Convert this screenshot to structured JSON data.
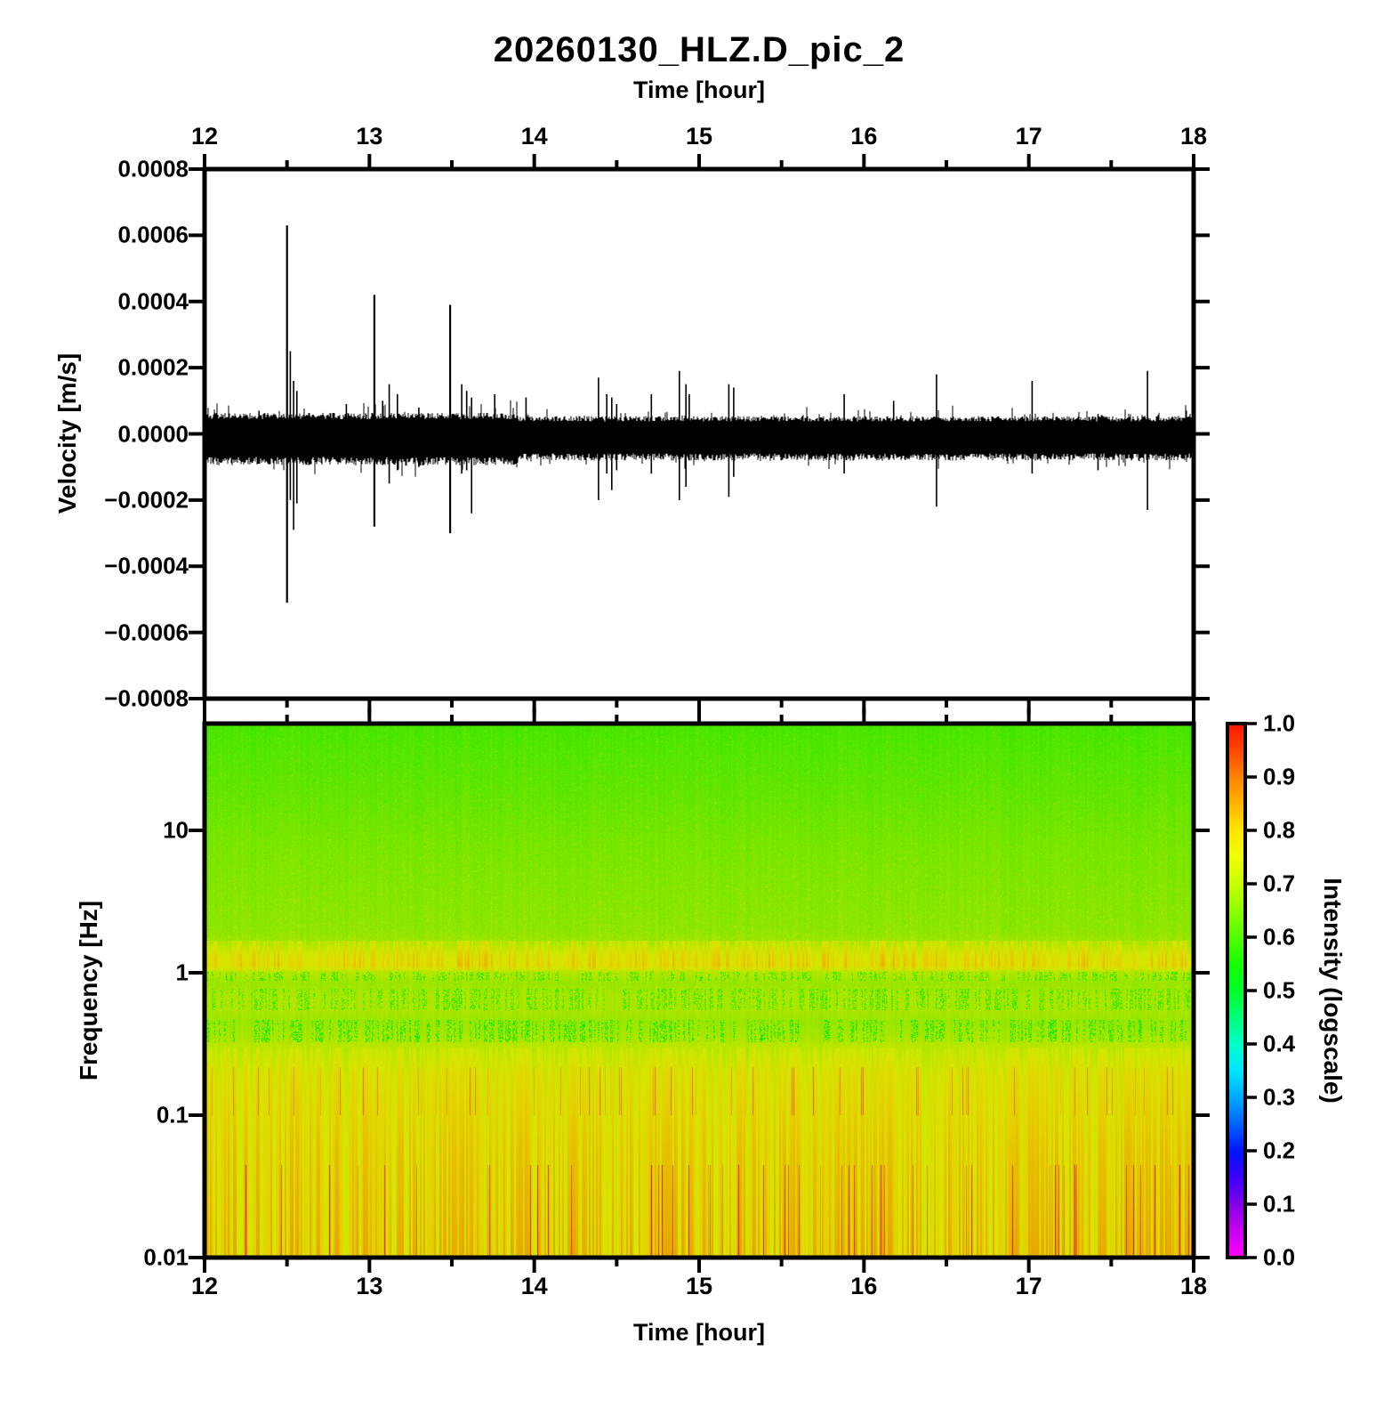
{
  "title": "20260130_HLZ.D_pic_2",
  "axes": {
    "top_time_label": "Time [hour]",
    "bottom_time_label": "Time [hour]",
    "velocity_label": "Velocity [m/s]",
    "frequency_label": "Frequency [Hz]",
    "hour_ticks": [
      "12",
      "13",
      "14",
      "15",
      "16",
      "17",
      "18"
    ],
    "velocity_ticks": [
      "0.0008",
      "0.0006",
      "0.0004",
      "0.0002",
      "0.0000",
      "−0.0002",
      "−0.0004",
      "−0.0006",
      "−0.0008"
    ],
    "frequency_ticks": [
      "10",
      "1",
      "0.1",
      "0.01"
    ]
  },
  "colorbar": {
    "label": "Intensity (logscale)",
    "ticks": [
      "1.0",
      "0.9",
      "0.8",
      "0.7",
      "0.6",
      "0.5",
      "0.4",
      "0.3",
      "0.2",
      "0.1",
      "0.0"
    ],
    "min": 0.0,
    "max": 1.0
  },
  "chart_data": [
    {
      "type": "line",
      "name": "seismogram",
      "title": "20260130_HLZ.D_pic_2",
      "xlabel": "Time [hour]",
      "ylabel": "Velocity [m/s]",
      "xlim": [
        12,
        18
      ],
      "ylim": [
        -0.0008,
        0.0008
      ],
      "line_color": "#000000",
      "noise_band_ms": {
        "upper": 4.7e-05,
        "lower": -7.5e-05
      },
      "noise_hair_extra_ms": 4.5e-05,
      "events": [
        {
          "t": 12.33,
          "up": 7e-05,
          "down": -9e-05
        },
        {
          "t": 12.5,
          "up": 0.00063,
          "down": -0.00051
        },
        {
          "t": 12.52,
          "up": 0.00025,
          "down": -0.0002
        },
        {
          "t": 12.54,
          "up": 0.00016,
          "down": -0.00029
        },
        {
          "t": 12.56,
          "up": 0.00013,
          "down": -0.00021
        },
        {
          "t": 12.86,
          "up": 9e-05,
          "down": -7e-05
        },
        {
          "t": 13.03,
          "up": 0.00042,
          "down": -0.00028
        },
        {
          "t": 13.08,
          "up": 0.0001,
          "down": -8e-05
        },
        {
          "t": 13.12,
          "up": 0.00015,
          "down": -0.00015
        },
        {
          "t": 13.17,
          "up": 0.00012,
          "down": -0.00011
        },
        {
          "t": 13.3,
          "up": 8e-05,
          "down": -0.0001
        },
        {
          "t": 13.49,
          "up": 0.00039,
          "down": -0.0003
        },
        {
          "t": 13.56,
          "up": 0.00015,
          "down": -0.00012
        },
        {
          "t": 13.59,
          "up": 0.00013,
          "down": -0.00011
        },
        {
          "t": 13.62,
          "up": 0.00011,
          "down": -0.00024
        },
        {
          "t": 13.76,
          "up": 0.00012,
          "down": -8e-05
        },
        {
          "t": 13.95,
          "up": 0.00011,
          "down": -6e-05
        },
        {
          "t": 14.39,
          "up": 0.00017,
          "down": -0.0002
        },
        {
          "t": 14.44,
          "up": 0.00012,
          "down": -0.00012
        },
        {
          "t": 14.47,
          "up": 0.00011,
          "down": -0.00017
        },
        {
          "t": 14.5,
          "up": 9e-05,
          "down": -0.00011
        },
        {
          "t": 14.71,
          "up": 0.00012,
          "down": -0.00012
        },
        {
          "t": 14.88,
          "up": 0.00019,
          "down": -0.0002
        },
        {
          "t": 14.92,
          "up": 0.00015,
          "down": -0.00016
        },
        {
          "t": 14.94,
          "up": 0.00012,
          "down": -8e-05
        },
        {
          "t": 15.18,
          "up": 0.00015,
          "down": -0.00019
        },
        {
          "t": 15.21,
          "up": 0.00014,
          "down": -0.00013
        },
        {
          "t": 15.88,
          "up": 0.00012,
          "down": -0.00012
        },
        {
          "t": 16.18,
          "up": 0.0001,
          "down": -6e-05
        },
        {
          "t": 16.44,
          "up": 0.00018,
          "down": -0.00022
        },
        {
          "t": 17.02,
          "up": 0.00016,
          "down": -0.00012
        },
        {
          "t": 17.42,
          "up": 6e-05,
          "down": -0.00011
        },
        {
          "t": 17.72,
          "up": 0.00019,
          "down": -0.00023
        }
      ]
    },
    {
      "type": "heatmap",
      "name": "spectrogram",
      "xlabel": "Time [hour]",
      "ylabel": "Frequency [Hz]",
      "xlim": [
        12,
        18
      ],
      "ylim_hz": [
        0.01,
        56.2
      ],
      "yscale": "log",
      "value_label": "Intensity (logscale)",
      "value_range": [
        0.0,
        1.0
      ],
      "intensity_profile_hz_value": [
        [
          56.2,
          0.6
        ],
        [
          30,
          0.615
        ],
        [
          15,
          0.63
        ],
        [
          8,
          0.645
        ],
        [
          4,
          0.655
        ],
        [
          2,
          0.665
        ],
        [
          1.6,
          0.685
        ],
        [
          1.35,
          0.73
        ],
        [
          1.15,
          0.745
        ],
        [
          1.0,
          0.7
        ],
        [
          0.85,
          0.675
        ],
        [
          0.7,
          0.69
        ],
        [
          0.55,
          0.69
        ],
        [
          0.45,
          0.675
        ],
        [
          0.35,
          0.69
        ],
        [
          0.28,
          0.72
        ],
        [
          0.2,
          0.75
        ],
        [
          0.12,
          0.765
        ],
        [
          0.06,
          0.775
        ],
        [
          0.02,
          0.78
        ],
        [
          0.01,
          0.785
        ]
      ],
      "dash_bands_hz": [
        {
          "f0": 0.33,
          "f1": 0.47,
          "depth": 0.16
        },
        {
          "f0": 0.55,
          "f1": 0.78,
          "depth": 0.12
        },
        {
          "f0": 0.88,
          "f1": 1.02,
          "depth": 0.13
        }
      ],
      "bright_band_hz": {
        "f0": 1.05,
        "f1": 1.7,
        "boost": 0.06
      },
      "stripes_below_hz": 0.3,
      "hot_stripe_bands_hz": [
        [
          0.1,
          0.22
        ],
        [
          0.01,
          0.045
        ]
      ],
      "speckle_above_hz": 1.6
    }
  ],
  "colormap_stops": [
    {
      "v": 0.0,
      "c": "#FF00FF"
    },
    {
      "v": 0.05,
      "c": "#C800F0"
    },
    {
      "v": 0.1,
      "c": "#8200E6"
    },
    {
      "v": 0.15,
      "c": "#3C00FF"
    },
    {
      "v": 0.2,
      "c": "#0014FF"
    },
    {
      "v": 0.25,
      "c": "#0064FF"
    },
    {
      "v": 0.3,
      "c": "#00A8FF"
    },
    {
      "v": 0.35,
      "c": "#00E6FF"
    },
    {
      "v": 0.4,
      "c": "#00FFC8"
    },
    {
      "v": 0.45,
      "c": "#00FF78"
    },
    {
      "v": 0.5,
      "c": "#00FF28"
    },
    {
      "v": 0.55,
      "c": "#14FF00"
    },
    {
      "v": 0.6,
      "c": "#50FF00"
    },
    {
      "v": 0.65,
      "c": "#8CFF00"
    },
    {
      "v": 0.7,
      "c": "#C8FF00"
    },
    {
      "v": 0.75,
      "c": "#F0FF00"
    },
    {
      "v": 0.8,
      "c": "#FFE600"
    },
    {
      "v": 0.85,
      "c": "#FFB400"
    },
    {
      "v": 0.9,
      "c": "#FF8200"
    },
    {
      "v": 0.95,
      "c": "#FF4600"
    },
    {
      "v": 1.0,
      "c": "#FF1400"
    }
  ]
}
